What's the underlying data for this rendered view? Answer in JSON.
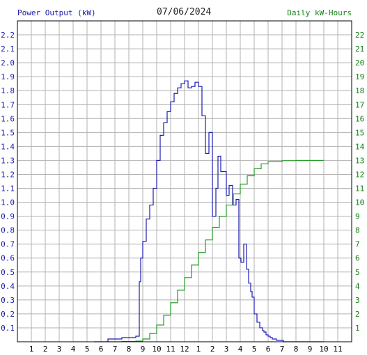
{
  "header": {
    "left_label": "Power Output (kW)",
    "date": "07/06/2024",
    "right_label": "Daily kW-Hours"
  },
  "colors": {
    "power_line": "#1c1cb4",
    "energy_line": "#229922",
    "left_axis_text": "#1a1aa6",
    "right_axis_text": "#158015",
    "grid": "#b0b0b0",
    "frame": "#000000"
  },
  "chart_data": {
    "type": "line",
    "title": "07/06/2024",
    "x_ticks": [
      "1",
      "2",
      "3",
      "4",
      "5",
      "6",
      "7",
      "8",
      "9",
      "10",
      "11",
      "12",
      "1",
      "2",
      "3",
      "4",
      "5",
      "6",
      "7",
      "8",
      "9",
      "10",
      "11"
    ],
    "x_range_hours": [
      0,
      24
    ],
    "y_left": {
      "label": "Power Output (kW)",
      "range": [
        0,
        2.3
      ],
      "ticks": [
        "0.1",
        "0.2",
        "0.3",
        "0.4",
        "0.5",
        "0.6",
        "0.7",
        "0.8",
        "0.9",
        "1.0",
        "1.1",
        "1.2",
        "1.3",
        "1.4",
        "1.5",
        "1.6",
        "1.7",
        "1.8",
        "1.9",
        "2.0",
        "2.1",
        "2.2"
      ]
    },
    "y_right": {
      "label": "Daily kW-Hours",
      "range": [
        0,
        23
      ],
      "ticks": [
        "1",
        "2",
        "3",
        "4",
        "5",
        "6",
        "7",
        "8",
        "9",
        "10",
        "11",
        "12",
        "13",
        "14",
        "15",
        "16",
        "17",
        "18",
        "19",
        "20",
        "21",
        "22"
      ]
    },
    "grid": true,
    "series": [
      {
        "name": "Power Output (kW)",
        "axis": "left",
        "x": [
          5.5,
          6.5,
          7.5,
          8.5,
          8.75,
          8.85,
          9.0,
          9.25,
          9.5,
          9.75,
          10.0,
          10.25,
          10.5,
          10.75,
          11.0,
          11.25,
          11.5,
          11.75,
          12.0,
          12.25,
          12.5,
          12.75,
          13.0,
          13.25,
          13.5,
          13.75,
          14.0,
          14.25,
          14.4,
          14.6,
          15.0,
          15.2,
          15.45,
          15.7,
          15.9,
          16.05,
          16.25,
          16.45,
          16.6,
          16.75,
          16.85,
          17.0,
          17.2,
          17.4,
          17.6,
          17.7,
          17.85,
          18.0,
          18.15,
          18.3,
          18.45,
          18.6,
          18.75,
          18.9,
          19.1,
          19.3,
          19.6,
          20.0,
          20.3,
          20.5,
          20.8,
          21.1,
          21.5,
          22.0
        ],
        "y": [
          0.0,
          0.02,
          0.03,
          0.04,
          0.43,
          0.6,
          0.72,
          0.88,
          0.98,
          1.1,
          1.3,
          1.48,
          1.57,
          1.65,
          1.72,
          1.78,
          1.82,
          1.85,
          1.87,
          1.82,
          1.83,
          1.86,
          1.83,
          1.62,
          1.35,
          1.5,
          0.9,
          1.1,
          1.33,
          1.22,
          1.05,
          1.12,
          0.98,
          1.02,
          0.6,
          0.57,
          0.7,
          0.52,
          0.42,
          0.36,
          0.32,
          0.2,
          0.14,
          0.1,
          0.08,
          0.07,
          0.05,
          0.04,
          0.03,
          0.02,
          0.02,
          0.01,
          0.01,
          0.01,
          0.0,
          0.0,
          0.0,
          0.0,
          0.0,
          0.0,
          0.0,
          0.0,
          0.0,
          0.0
        ]
      },
      {
        "name": "Daily kW-Hours",
        "axis": "right",
        "x": [
          6.5,
          7.5,
          8.5,
          9.0,
          9.5,
          10.0,
          10.5,
          11.0,
          11.5,
          12.0,
          12.5,
          13.0,
          13.5,
          14.0,
          14.5,
          15.0,
          15.5,
          16.0,
          16.5,
          17.0,
          17.5,
          18.0,
          19.0,
          20.0,
          21.0,
          22.0
        ],
        "y": [
          0.0,
          0.02,
          0.05,
          0.2,
          0.6,
          1.2,
          1.9,
          2.8,
          3.7,
          4.6,
          5.5,
          6.4,
          7.3,
          8.2,
          9.0,
          9.8,
          10.6,
          11.3,
          11.9,
          12.4,
          12.75,
          12.9,
          12.98,
          13.0,
          13.0,
          13.0
        ]
      }
    ]
  }
}
